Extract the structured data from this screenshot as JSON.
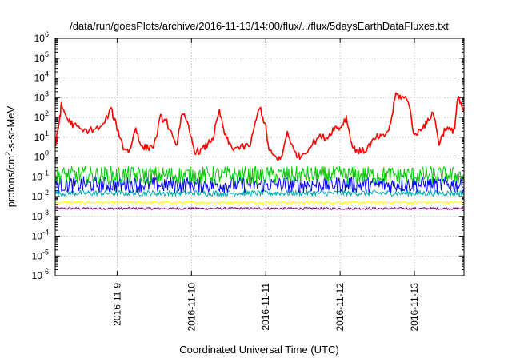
{
  "chart_data": {
    "type": "line",
    "title": "/data/run/goesPlots/archive/2016-11-13/14:00/flux/../flux/5daysEarthDataFluxes.txt",
    "xlabel": "Coordinated Universal Time (UTC)",
    "ylabel": {
      "main": "protons/cm",
      "sup": "2",
      "rest": "-s-sr-MeV"
    },
    "yscale": "log",
    "ylim": [
      1e-06,
      1000000.0
    ],
    "xlim": [
      "2016-11-08 04:00",
      "2016-11-13 16:00"
    ],
    "grid": true,
    "legend": "none",
    "x_ticks": [
      {
        "x": "2016-11-09 00:00",
        "label": "2016-11-9"
      },
      {
        "x": "2016-11-10 00:00",
        "label": "2016-11-10"
      },
      {
        "x": "2016-11-11 00:00",
        "label": "2016-11-11"
      },
      {
        "x": "2016-11-12 00:00",
        "label": "2016-11-12"
      },
      {
        "x": "2016-11-13 00:00",
        "label": "2016-11-13"
      }
    ],
    "y_ticks": [
      {
        "value": 1e-06,
        "base": "10",
        "exp": "-6"
      },
      {
        "value": 1e-05,
        "base": "10",
        "exp": "-5"
      },
      {
        "value": 0.0001,
        "base": "10",
        "exp": "-4"
      },
      {
        "value": 0.001,
        "base": "10",
        "exp": "-3"
      },
      {
        "value": 0.01,
        "base": "10",
        "exp": "-2"
      },
      {
        "value": 0.1,
        "base": "10",
        "exp": "-1"
      },
      {
        "value": 1,
        "base": "10",
        "exp": "0"
      },
      {
        "value": 10,
        "base": "10",
        "exp": "1"
      },
      {
        "value": 100,
        "base": "10",
        "exp": "2"
      },
      {
        "value": 1000,
        "base": "10",
        "exp": "3"
      },
      {
        "value": 10000,
        "base": "10",
        "exp": "4"
      },
      {
        "value": 100000,
        "base": "10",
        "exp": "5"
      },
      {
        "value": 1000000,
        "base": "10",
        "exp": "6"
      }
    ],
    "series": [
      {
        "color": "#ff0000",
        "x": [
          "2016-11-08 04:00",
          "2016-11-08 05:00",
          "2016-11-08 06:00",
          "2016-11-08 08:00",
          "2016-11-08 10:00",
          "2016-11-08 13:00",
          "2016-11-08 16:00",
          "2016-11-08 19:00",
          "2016-11-08 22:00",
          "2016-11-09 00:00",
          "2016-11-09 02:00",
          "2016-11-09 04:00",
          "2016-11-09 06:00",
          "2016-11-09 08:00",
          "2016-11-09 10:00",
          "2016-11-09 12:00",
          "2016-11-09 14:00",
          "2016-11-09 16:00",
          "2016-11-09 19:00",
          "2016-11-09 21:00",
          "2016-11-09 23:00",
          "2016-11-10 01:00",
          "2016-11-10 03:00",
          "2016-11-10 05:00",
          "2016-11-10 07:00",
          "2016-11-10 09:00",
          "2016-11-10 11:00",
          "2016-11-10 13:00",
          "2016-11-10 16:00",
          "2016-11-10 19:00",
          "2016-11-10 22:00",
          "2016-11-11 00:00",
          "2016-11-11 01:00",
          "2016-11-11 03:00",
          "2016-11-11 05:00",
          "2016-11-11 07:00",
          "2016-11-11 09:00",
          "2016-11-11 11:00",
          "2016-11-11 14:00",
          "2016-11-11 17:00",
          "2016-11-11 20:00",
          "2016-11-11 22:00",
          "2016-11-12 00:00",
          "2016-11-12 02:00",
          "2016-11-12 04:00",
          "2016-11-12 06:00",
          "2016-11-12 08:00",
          "2016-11-12 10:00",
          "2016-11-12 12:00",
          "2016-11-12 14:00",
          "2016-11-12 16:00",
          "2016-11-12 18:00",
          "2016-11-12 20:00",
          "2016-11-12 22:00",
          "2016-11-13 00:00",
          "2016-11-13 02:00",
          "2016-11-13 04:00",
          "2016-11-13 06:00",
          "2016-11-13 08:00",
          "2016-11-13 10:00",
          "2016-11-13 12:00",
          "2016-11-13 13:00",
          "2016-11-13 14:00",
          "2016-11-13 16:00"
        ],
        "y": [
          3,
          30,
          400,
          80,
          40,
          20,
          25,
          30,
          250,
          30,
          3,
          2,
          30,
          3,
          3,
          4,
          100,
          60,
          3,
          200,
          30,
          2,
          2,
          4,
          10,
          200,
          10,
          3,
          3,
          4,
          400,
          30,
          2,
          1,
          0.8,
          20,
          2,
          1,
          3,
          10,
          10,
          30,
          30,
          100,
          3,
          2,
          2,
          5,
          10,
          10,
          30,
          1500,
          1000,
          800,
          10,
          30,
          50,
          200,
          5,
          30,
          20,
          30,
          1000,
          200
        ]
      },
      {
        "color": "#00cc00",
        "x": [
          "2016-11-08 04:00",
          "2016-11-13 16:00"
        ],
        "y": [
          0.12,
          0.12
        ],
        "spread": 0.45
      },
      {
        "color": "#0000ff",
        "x": [
          "2016-11-08 04:00",
          "2016-11-13 16:00"
        ],
        "y": [
          0.04,
          0.04
        ],
        "spread": 0.4
      },
      {
        "color": "#00aaaa",
        "x": [
          "2016-11-08 04:00",
          "2016-11-13 16:00"
        ],
        "y": [
          0.015,
          0.015
        ],
        "spread": 0.15
      },
      {
        "color": "#ffff00",
        "x": [
          "2016-11-08 04:00",
          "2016-11-13 16:00"
        ],
        "y": [
          0.005,
          0.005
        ],
        "spread": 0.06
      },
      {
        "color": "#800080",
        "x": [
          "2016-11-08 04:00",
          "2016-11-13 16:00"
        ],
        "y": [
          0.0025,
          0.0025
        ],
        "spread": 0.06
      }
    ]
  }
}
